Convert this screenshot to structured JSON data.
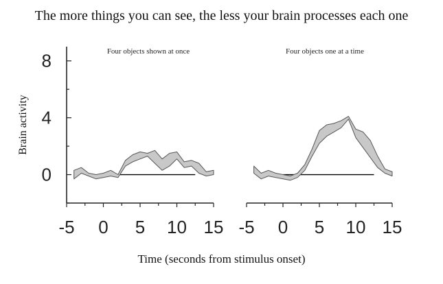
{
  "title": "The more things you can see, the less your brain processes each one",
  "xlabel": "Time (seconds from stimulus onset)",
  "ylabel": "Brain activity",
  "colors": {
    "band_fill": "#c8c8c8",
    "band_stroke": "#555555",
    "axis": "#222222"
  },
  "chart_data": [
    {
      "type": "area",
      "title": "Four objects shown at once",
      "xlim": [
        -5,
        15
      ],
      "ylim": [
        -2,
        9
      ],
      "xticks": [
        -5,
        0,
        5,
        10,
        15
      ],
      "xtick_labels": [
        "-5",
        "0",
        "5",
        "10",
        "15"
      ],
      "yticks": [
        0,
        4,
        8
      ],
      "ytick_labels": [
        "0",
        "4",
        "8"
      ],
      "x": [
        -4,
        -3,
        -2,
        -1,
        0,
        1,
        2,
        3,
        4,
        5,
        6,
        7,
        8,
        9,
        10,
        11,
        12,
        13,
        14,
        15
      ],
      "upper": [
        0.3,
        0.5,
        0.1,
        0.0,
        0.1,
        0.3,
        0.0,
        1.0,
        1.4,
        1.6,
        1.5,
        1.7,
        1.1,
        1.5,
        1.6,
        0.9,
        1.0,
        0.8,
        0.2,
        0.3
      ],
      "lower": [
        -0.3,
        0.1,
        -0.1,
        -0.3,
        -0.2,
        -0.1,
        -0.2,
        0.6,
        0.9,
        1.1,
        1.3,
        0.8,
        0.3,
        0.6,
        1.1,
        0.5,
        0.6,
        0.1,
        -0.1,
        0.0
      ]
    },
    {
      "type": "area",
      "title": "Four objects one at a time",
      "xlim": [
        -5,
        15
      ],
      "ylim": [
        -2,
        9
      ],
      "xticks": [
        -5,
        0,
        5,
        10,
        15
      ],
      "xtick_labels": [
        "-5",
        "0",
        "5",
        "10",
        "15"
      ],
      "x": [
        -4,
        -3,
        -2,
        -1,
        0,
        1,
        2,
        3,
        4,
        5,
        6,
        7,
        8,
        9,
        10,
        11,
        12,
        13,
        14,
        15
      ],
      "upper": [
        0.6,
        0.1,
        0.3,
        0.1,
        0.0,
        -0.1,
        0.1,
        0.7,
        1.8,
        3.1,
        3.5,
        3.6,
        3.8,
        4.1,
        3.2,
        3.0,
        2.4,
        1.3,
        0.4,
        0.2
      ],
      "lower": [
        0.1,
        -0.3,
        -0.1,
        -0.2,
        -0.3,
        -0.4,
        -0.2,
        0.3,
        1.3,
        2.2,
        2.7,
        3.0,
        3.3,
        3.9,
        2.6,
        1.9,
        1.2,
        0.5,
        0.1,
        -0.1
      ]
    }
  ]
}
